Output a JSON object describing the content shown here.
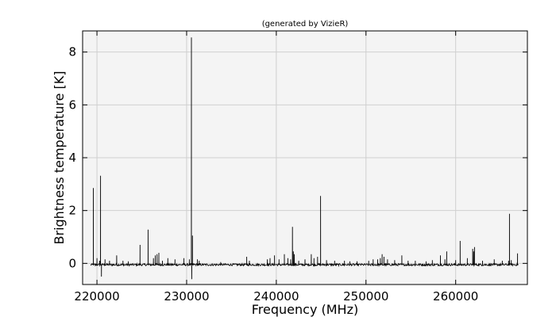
{
  "chart_data": {
    "type": "line",
    "title": "(generated by VizieR)",
    "xlabel": "Frequency (MHz)",
    "ylabel": "Brightness temperature [K]",
    "xlim": [
      218400,
      268000
    ],
    "ylim": [
      -0.8,
      8.8
    ],
    "x_ticks": [
      220000,
      230000,
      240000,
      250000,
      260000
    ],
    "x_tick_labels": [
      "220000",
      "230000",
      "240000",
      "250000",
      "260000"
    ],
    "y_ticks": [
      0,
      2,
      4,
      6,
      8
    ],
    "y_tick_labels": [
      "0",
      "2",
      "4",
      "6",
      "8"
    ],
    "grid": true,
    "background_color": "#f4f4f4",
    "line_color": "#000000",
    "data_range_x": [
      219300,
      267000
    ],
    "baseline": -0.05,
    "noise_rms": 0.04,
    "series": [
      {
        "peaks": [
          [
            219600,
            2.85
          ],
          [
            219800,
            -0.1
          ],
          [
            220000,
            0.2
          ],
          [
            220300,
            0.1
          ],
          [
            220400,
            3.32
          ],
          [
            220500,
            -0.5
          ],
          [
            220900,
            0.15
          ],
          [
            221400,
            0.1
          ],
          [
            222200,
            0.3
          ],
          [
            222900,
            0.1
          ],
          [
            223500,
            0.08
          ],
          [
            224800,
            0.7
          ],
          [
            225700,
            1.28
          ],
          [
            226300,
            0.2
          ],
          [
            226500,
            0.3
          ],
          [
            226700,
            0.35
          ],
          [
            226900,
            0.4
          ],
          [
            227300,
            0.1
          ],
          [
            227900,
            0.2
          ],
          [
            228700,
            0.15
          ],
          [
            229700,
            0.2
          ],
          [
            230300,
            0.15
          ],
          [
            230530,
            8.55
          ],
          [
            230570,
            -0.6
          ],
          [
            230650,
            1.05
          ],
          [
            231200,
            0.15
          ],
          [
            231400,
            0.1
          ],
          [
            233800,
            0.05
          ],
          [
            236700,
            0.25
          ],
          [
            237000,
            0.1
          ],
          [
            239000,
            0.15
          ],
          [
            239300,
            0.2
          ],
          [
            239800,
            0.3
          ],
          [
            240300,
            0.15
          ],
          [
            240900,
            0.35
          ],
          [
            241300,
            0.2
          ],
          [
            241600,
            0.15
          ],
          [
            241800,
            1.38
          ],
          [
            241900,
            0.45
          ],
          [
            242000,
            0.35
          ],
          [
            242500,
            0.1
          ],
          [
            243200,
            0.15
          ],
          [
            243900,
            0.35
          ],
          [
            244200,
            0.2
          ],
          [
            244600,
            0.25
          ],
          [
            244940,
            2.55
          ],
          [
            245600,
            0.12
          ],
          [
            246500,
            0.1
          ],
          [
            247600,
            0.1
          ],
          [
            248200,
            0.08
          ],
          [
            249000,
            0.08
          ],
          [
            250300,
            0.1
          ],
          [
            250800,
            0.15
          ],
          [
            251300,
            0.15
          ],
          [
            251600,
            0.2
          ],
          [
            251800,
            0.35
          ],
          [
            252000,
            0.25
          ],
          [
            252400,
            0.15
          ],
          [
            253200,
            0.12
          ],
          [
            254000,
            0.3
          ],
          [
            254700,
            0.1
          ],
          [
            255500,
            0.1
          ],
          [
            256700,
            0.08
          ],
          [
            257400,
            0.12
          ],
          [
            258300,
            0.3
          ],
          [
            258800,
            0.15
          ],
          [
            259000,
            0.45
          ],
          [
            260000,
            0.12
          ],
          [
            260500,
            0.85
          ],
          [
            261300,
            0.2
          ],
          [
            261900,
            0.55
          ],
          [
            262000,
            0.45
          ],
          [
            262100,
            0.62
          ],
          [
            263000,
            0.1
          ],
          [
            264300,
            0.15
          ],
          [
            265200,
            0.1
          ],
          [
            265900,
            0.1
          ],
          [
            266000,
            1.88
          ],
          [
            266200,
            0.12
          ],
          [
            266900,
            0.38
          ]
        ]
      }
    ]
  }
}
